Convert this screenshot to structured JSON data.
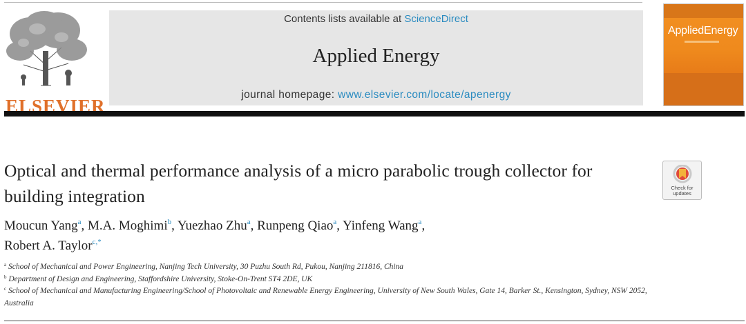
{
  "header": {
    "contents_prefix": "Contents lists available at ",
    "contents_link": "ScienceDirect",
    "journal_title": "Applied Energy",
    "homepage_prefix": "journal homepage: ",
    "homepage_url": "www.elsevier.com/locate/apenergy",
    "publisher_logo_text": "ELSEVIER",
    "cover_title_a": "Applied",
    "cover_title_b": "Energy"
  },
  "article": {
    "title": "Optical and thermal performance analysis of a micro parabolic trough collector for building integration",
    "check_updates_label_1": "Check for",
    "check_updates_label_2": "updates",
    "authors": [
      {
        "name": "Moucun Yang",
        "sup": "a",
        "sep": ", "
      },
      {
        "name": "M.A. Moghimi",
        "sup": "b",
        "sep": ", "
      },
      {
        "name": "Yuezhao Zhu",
        "sup": "a",
        "sep": ", "
      },
      {
        "name": "Runpeng Qiao",
        "sup": "a",
        "sep": ", "
      },
      {
        "name": "Yinfeng Wang",
        "sup": "a",
        "sep": ","
      },
      {
        "name": "Robert A. Taylor",
        "sup": "c,*",
        "sep": ""
      }
    ],
    "affiliations": [
      {
        "sup": "a",
        "text": "School of Mechanical and Power Engineering, Nanjing Tech University, 30 Puzhu South Rd, Pukou, Nanjing 211816, China"
      },
      {
        "sup": "b",
        "text": "Department of Design and Engineering, Staffordshire University, Stoke-On-Trent ST4 2DE, UK"
      },
      {
        "sup": "c",
        "text": "School of Mechanical and Manufacturing Engineering/School of Photovoltaic and Renewable Energy Engineering, University of New South Wales, Gate 14, Barker St., Kensington, Sydney, NSW 2052, Australia"
      }
    ]
  },
  "colors": {
    "link": "#2a8bc0",
    "elsevier_orange": "#e0702a",
    "cover_orange": "#ef8a1d"
  }
}
